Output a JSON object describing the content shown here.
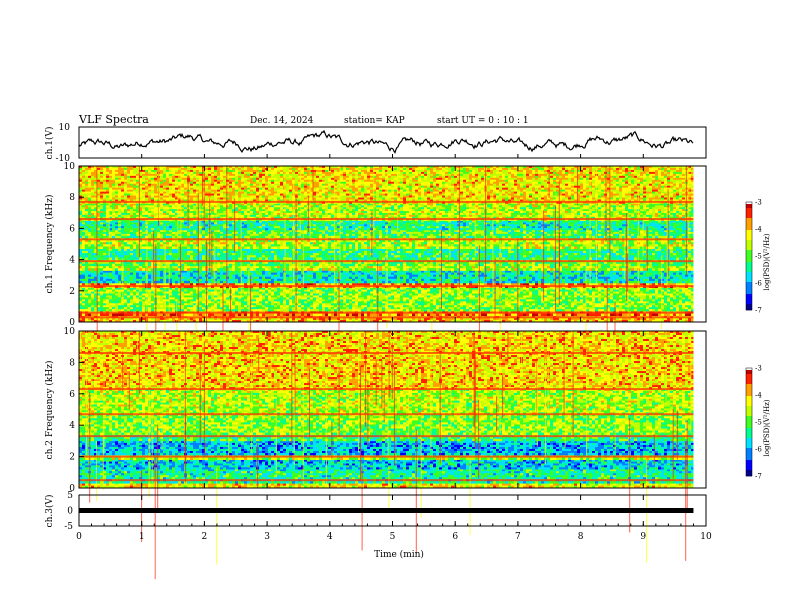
{
  "header": {
    "title": "VLF Spectra",
    "date": "Dec. 14, 2024",
    "station": "station= KAP",
    "start_ut": "start  UT =   0  : 10 : 1"
  },
  "chart_data": [
    {
      "type": "line",
      "panel": "ch1-waveform",
      "ylabel": "ch.1(V)",
      "ylim": [
        -10,
        10
      ],
      "yticks": [
        "10",
        "-10"
      ],
      "xlim": [
        0,
        10
      ],
      "x_end": 9.8,
      "note_values_read": "waveform oscillating within approx. -7 to 8 V"
    },
    {
      "type": "heatmap",
      "panel": "ch1-spectrogram",
      "ylabel": "ch.1  Frequency  (kHz)",
      "ylim": [
        0,
        10
      ],
      "yticks": [
        "0",
        "2",
        "4",
        "6",
        "8",
        "10"
      ],
      "xlim": [
        0,
        10
      ],
      "x_end": 9.8,
      "colorbar": {
        "label": "log(PSD)(V²/Hz)",
        "ticks": [
          "-3",
          "-4",
          "-5",
          "-6",
          "-7"
        ],
        "range": [
          -7,
          -3
        ]
      },
      "bands": [
        {
          "f": [
            0.0,
            0.4
          ],
          "level": -4.0
        },
        {
          "f": [
            0.4,
            0.7
          ],
          "level": -3.6
        },
        {
          "f": [
            0.7,
            2.2
          ],
          "level": -4.8
        },
        {
          "f": [
            2.2,
            2.5
          ],
          "level": -3.8
        },
        {
          "f": [
            2.5,
            3.3
          ],
          "level": -5.6
        },
        {
          "f": [
            3.3,
            3.6
          ],
          "level": -4.6
        },
        {
          "f": [
            3.6,
            4.0
          ],
          "level": -4.9
        },
        {
          "f": [
            4.0,
            4.7
          ],
          "level": -5.3
        },
        {
          "f": [
            4.7,
            5.4
          ],
          "level": -4.6
        },
        {
          "f": [
            5.4,
            5.9
          ],
          "level": -5.0
        },
        {
          "f": [
            5.9,
            6.5
          ],
          "level": -5.4
        },
        {
          "f": [
            6.5,
            7.6
          ],
          "level": -4.6
        },
        {
          "f": [
            7.6,
            10.0
          ],
          "level": -4.2
        }
      ],
      "lines_khz": [
        0.3,
        0.6,
        2.3,
        3.9,
        5.3,
        6.6,
        7.7
      ]
    },
    {
      "type": "heatmap",
      "panel": "ch2-spectrogram",
      "ylabel": "ch.2  Frequency  (kHz)",
      "ylim": [
        0,
        10
      ],
      "yticks": [
        "0",
        "2",
        "4",
        "6",
        "8",
        "10"
      ],
      "xlim": [
        0,
        10
      ],
      "x_end": 9.8,
      "colorbar": {
        "label": "log(PSD)(V²/Hz)",
        "ticks": [
          "-3",
          "-4",
          "-5",
          "-6",
          "-7"
        ],
        "range": [
          -7,
          -3
        ]
      },
      "bands": [
        {
          "f": [
            0.0,
            0.3
          ],
          "level": -4.2
        },
        {
          "f": [
            0.3,
            1.2
          ],
          "level": -5.4
        },
        {
          "f": [
            1.2,
            1.8
          ],
          "level": -5.8
        },
        {
          "f": [
            1.8,
            2.1
          ],
          "level": -4.6
        },
        {
          "f": [
            2.1,
            3.0
          ],
          "level": -5.9
        },
        {
          "f": [
            3.0,
            3.4
          ],
          "level": -5.2
        },
        {
          "f": [
            3.4,
            4.7
          ],
          "level": -4.8
        },
        {
          "f": [
            4.7,
            6.3
          ],
          "level": -4.6
        },
        {
          "f": [
            6.3,
            10.0
          ],
          "level": -4.1
        }
      ],
      "lines_khz": [
        0.5,
        2.0,
        3.3,
        4.7,
        6.3,
        8.6
      ]
    },
    {
      "type": "line",
      "panel": "ch3-trace",
      "ylabel": "ch.3(V)",
      "ylim": [
        -5,
        5
      ],
      "yticks": [
        "5",
        "0",
        "-5"
      ],
      "xlim": [
        0,
        10
      ],
      "x_end": 9.8,
      "value": 0.0,
      "xlabel": "Time  (min)",
      "xticks": [
        "0",
        "1",
        "2",
        "3",
        "4",
        "5",
        "6",
        "7",
        "8",
        "9",
        "10"
      ]
    }
  ],
  "colors": {
    "scale": [
      "#00008b",
      "#0000ff",
      "#0080ff",
      "#00e0ff",
      "#00ff90",
      "#40ff20",
      "#c0ff00",
      "#ffff00",
      "#ffa000",
      "#ff2000",
      "#c00000",
      "#ffffff"
    ]
  }
}
